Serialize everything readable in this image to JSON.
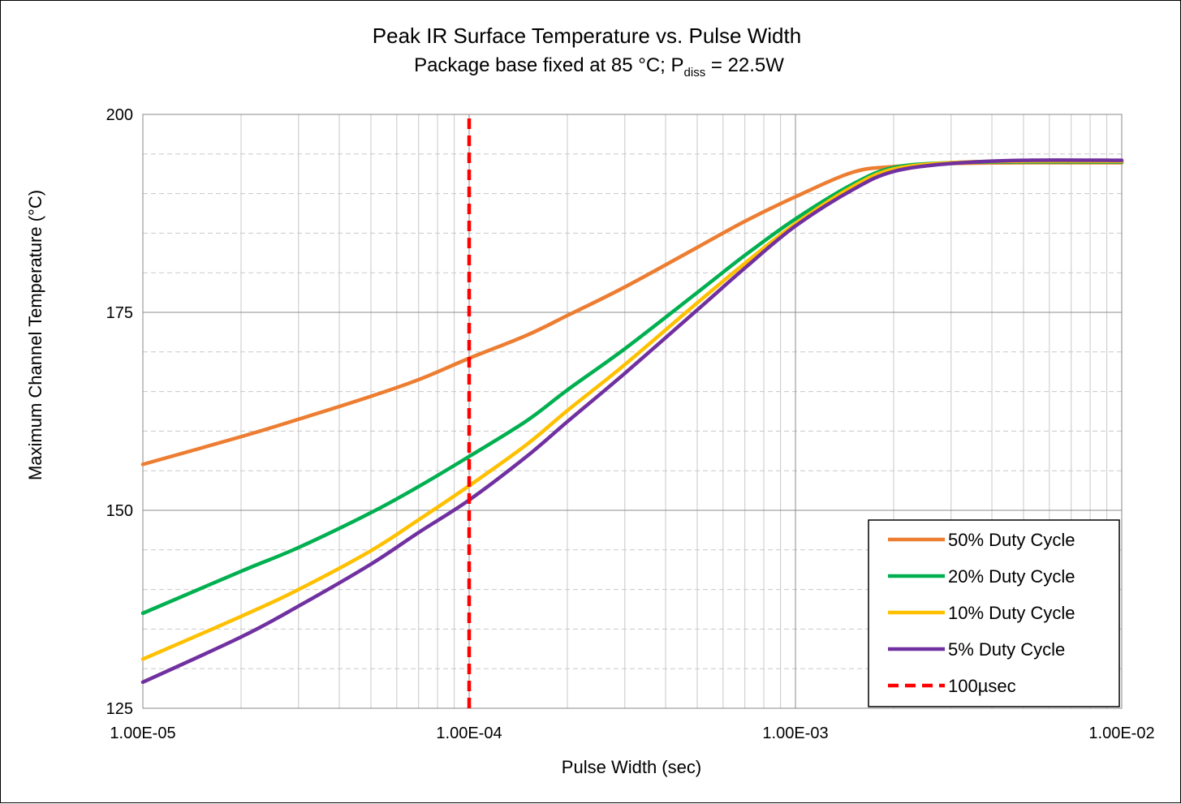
{
  "chart_data": {
    "type": "line",
    "title": "Peak IR Surface Temperature vs. Pulse Width",
    "subtitle": {
      "prefix": "Package base fixed at 85 °C; P",
      "subscript": "diss",
      "suffix": " = 22.5W"
    },
    "xlabel": "Pulse Width (sec)",
    "ylabel": "Maximum Channel Temperature (°C)",
    "x_scale": "log",
    "xlim": [
      1e-05,
      0.01
    ],
    "ylim": [
      125,
      200
    ],
    "x_ticks": [
      {
        "value": 1e-05,
        "label": "1.00E-05"
      },
      {
        "value": 0.0001,
        "label": "1.00E-04"
      },
      {
        "value": 0.001,
        "label": "1.00E-03"
      },
      {
        "value": 0.01,
        "label": "1.00E-02"
      }
    ],
    "y_ticks": [
      {
        "value": 125,
        "label": "125"
      },
      {
        "value": 150,
        "label": "150"
      },
      {
        "value": 175,
        "label": "175"
      },
      {
        "value": 200,
        "label": "200"
      }
    ],
    "grid": true,
    "legend_position": "bottom-right",
    "series": [
      {
        "name": "50% Duty Cycle",
        "color": "#ED7D31",
        "points": [
          [
            1e-05,
            155.8
          ],
          [
            2e-05,
            159.3
          ],
          [
            3e-05,
            161.5
          ],
          [
            5e-05,
            164.4
          ],
          [
            7e-05,
            166.5
          ],
          [
            0.0001,
            169.2
          ],
          [
            0.00015,
            172.1
          ],
          [
            0.0002,
            174.6
          ],
          [
            0.0003,
            178.2
          ],
          [
            0.0005,
            183.2
          ],
          [
            0.0007,
            186.5
          ],
          [
            0.001,
            189.6
          ],
          [
            0.0015,
            192.7
          ],
          [
            0.002,
            193.4
          ],
          [
            0.003,
            193.8
          ],
          [
            0.005,
            193.9
          ],
          [
            0.01,
            193.9
          ]
        ]
      },
      {
        "name": "20% Duty Cycle",
        "color": "#00B050",
        "points": [
          [
            1e-05,
            137.0
          ],
          [
            2e-05,
            142.3
          ],
          [
            3e-05,
            145.3
          ],
          [
            5e-05,
            149.7
          ],
          [
            7e-05,
            153.0
          ],
          [
            0.0001,
            156.8
          ],
          [
            0.00015,
            161.3
          ],
          [
            0.0002,
            165.2
          ],
          [
            0.0003,
            170.4
          ],
          [
            0.0005,
            177.5
          ],
          [
            0.0007,
            182.2
          ],
          [
            0.001,
            186.8
          ],
          [
            0.0015,
            191.2
          ],
          [
            0.002,
            193.3
          ],
          [
            0.003,
            193.9
          ],
          [
            0.005,
            194.0
          ],
          [
            0.01,
            194.0
          ]
        ]
      },
      {
        "name": "10% Duty Cycle",
        "color": "#FFC000",
        "points": [
          [
            1e-05,
            131.2
          ],
          [
            2e-05,
            136.6
          ],
          [
            3e-05,
            140.0
          ],
          [
            5e-05,
            144.9
          ],
          [
            7e-05,
            148.8
          ],
          [
            0.0001,
            153.1
          ],
          [
            0.00015,
            158.3
          ],
          [
            0.0002,
            162.6
          ],
          [
            0.0003,
            168.4
          ],
          [
            0.0005,
            176.2
          ],
          [
            0.0007,
            181.2
          ],
          [
            0.001,
            186.2
          ],
          [
            0.0015,
            190.9
          ],
          [
            0.002,
            193.1
          ],
          [
            0.003,
            193.9
          ],
          [
            0.005,
            194.1
          ],
          [
            0.01,
            194.1
          ]
        ]
      },
      {
        "name": "5% Duty Cycle",
        "color": "#7030A0",
        "points": [
          [
            1e-05,
            128.3
          ],
          [
            2e-05,
            134.0
          ],
          [
            3e-05,
            137.9
          ],
          [
            5e-05,
            143.2
          ],
          [
            7e-05,
            147.2
          ],
          [
            0.0001,
            151.3
          ],
          [
            0.00015,
            156.8
          ],
          [
            0.0002,
            161.2
          ],
          [
            0.0003,
            167.3
          ],
          [
            0.0005,
            175.3
          ],
          [
            0.0007,
            180.6
          ],
          [
            0.001,
            185.9
          ],
          [
            0.0015,
            190.5
          ],
          [
            0.002,
            192.8
          ],
          [
            0.003,
            193.8
          ],
          [
            0.005,
            194.2
          ],
          [
            0.01,
            194.2
          ]
        ]
      },
      {
        "name": "100µsec",
        "color": "#FF0000",
        "dashed": true,
        "points": [
          [
            0.0001,
            125
          ],
          [
            0.0001,
            200
          ]
        ]
      }
    ]
  }
}
